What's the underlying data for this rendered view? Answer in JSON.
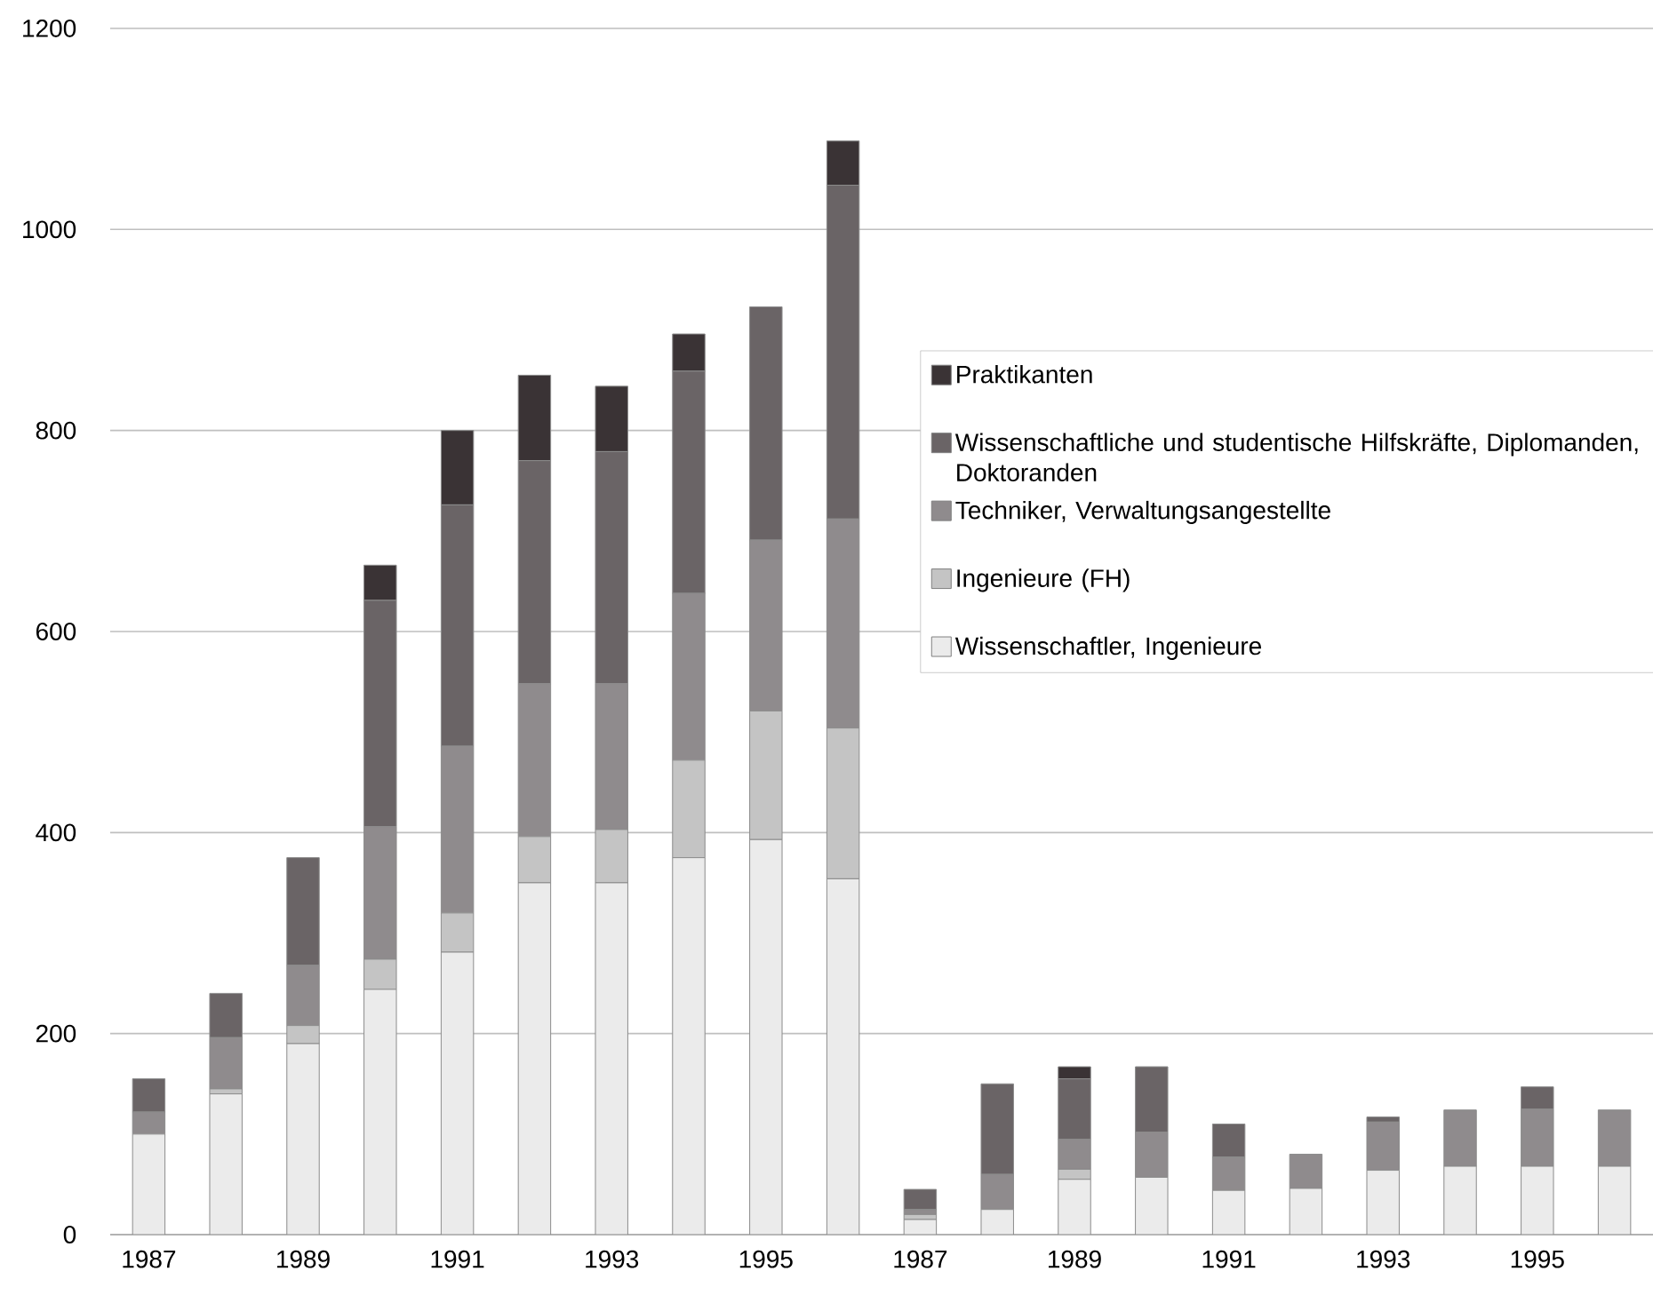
{
  "chart_data": {
    "type": "bar",
    "stacked": true,
    "categories": [
      "1987",
      null,
      "1989",
      null,
      "1991",
      null,
      "1993",
      null,
      "1995",
      null,
      "1987",
      null,
      "1989",
      null,
      "1991",
      null,
      "1993",
      null,
      "1995",
      null
    ],
    "series": [
      {
        "name": "Wissenschaftler, Ingenieure",
        "color": "#ebebeb",
        "values": [
          100,
          140,
          190,
          244,
          281,
          350,
          350,
          375,
          393,
          354,
          15,
          25,
          55,
          57,
          44,
          46,
          64,
          68,
          68,
          68
        ]
      },
      {
        "name": "Ingenieure (FH)",
        "color": "#c4c4c4",
        "values": [
          0,
          5,
          18,
          30,
          39,
          46,
          53,
          97,
          128,
          150,
          5,
          0,
          10,
          0,
          0,
          0,
          0,
          0,
          0,
          0
        ]
      },
      {
        "name": "Techniker, Verwaltungsangestellte",
        "color": "#8f8b8d",
        "values": [
          22,
          51,
          60,
          132,
          166,
          152,
          145,
          166,
          170,
          208,
          5,
          35,
          30,
          45,
          33,
          34,
          48,
          56,
          57,
          56
        ]
      },
      {
        "name": "Wissenschaftliche und studentische Hilfskräfte, Diplomanden, Doktoranden",
        "color": "#6a6466",
        "values": [
          33,
          44,
          107,
          225,
          240,
          222,
          231,
          221,
          232,
          332,
          20,
          90,
          60,
          65,
          33,
          0,
          5,
          0,
          22,
          0
        ]
      },
      {
        "name": "Praktikanten",
        "color": "#3a3335",
        "values": [
          0,
          0,
          0,
          35,
          74,
          85,
          65,
          37,
          0,
          44,
          0,
          0,
          12,
          0,
          0,
          0,
          0,
          0,
          0,
          0
        ]
      }
    ],
    "ylim": [
      0,
      1200
    ],
    "yticks": [
      0,
      200,
      400,
      600,
      800,
      1000,
      1200
    ],
    "grid": "y",
    "legend": "right"
  }
}
